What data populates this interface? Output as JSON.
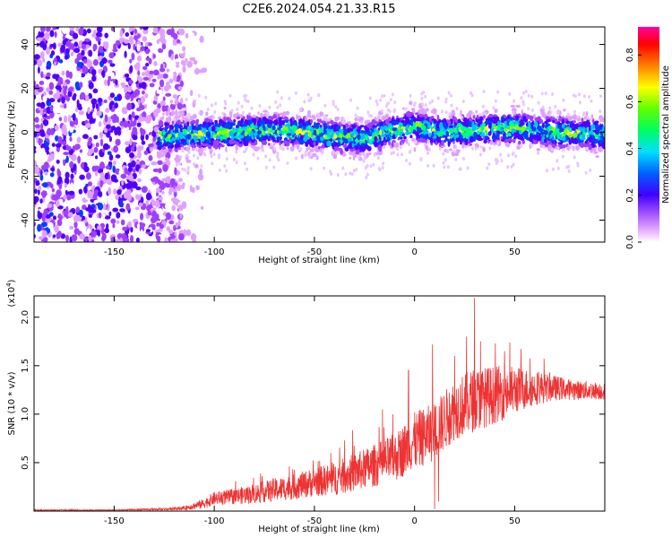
{
  "title": "C2E6.2024.054.21.33.R15",
  "chart_data": [
    {
      "type": "heatmap",
      "xlabel": "Height of straight line (km)",
      "ylabel": "Frequency (Hz)",
      "xlim": [
        -190,
        95
      ],
      "ylim": [
        -50,
        48
      ],
      "xticks": [
        -150,
        -100,
        -50,
        0,
        50
      ],
      "xtick_labels": [
        "-150",
        "-100",
        "-50",
        "0",
        "50"
      ],
      "yticks": [
        -40,
        -20,
        0,
        20,
        40
      ],
      "ytick_labels": [
        "-40",
        "-20",
        "0",
        "20",
        "40"
      ],
      "colorbar": {
        "label": "Normalized spectral amplitude",
        "range": [
          0,
          0.92
        ],
        "ticks": [
          0.0,
          0.2,
          0.4,
          0.6,
          0.8
        ],
        "tick_labels": [
          "0.0",
          "0.2",
          "0.4",
          "0.6",
          "0.8"
        ],
        "colormap": "rainbow"
      },
      "band": {
        "noise_region_x": [
          -190,
          -115
        ],
        "signal_start_x": -128,
        "center_freq_hz": [
          [
            -128,
            -2
          ],
          [
            -110,
            -1
          ],
          [
            -90,
            0
          ],
          [
            -70,
            1
          ],
          [
            -55,
            0
          ],
          [
            -40,
            -2
          ],
          [
            -25,
            -3
          ],
          [
            -10,
            1
          ],
          [
            0,
            3
          ],
          [
            15,
            0
          ],
          [
            30,
            1
          ],
          [
            50,
            2
          ],
          [
            70,
            0
          ],
          [
            95,
            -1
          ]
        ],
        "half_width_hz": 6
      }
    },
    {
      "type": "line",
      "xlabel": "Height of straight line (km)",
      "ylabel": "SNR (10 * v/v)",
      "y_multiplier_label": "(x10",
      "y_multiplier_exp": "4",
      "xlim": [
        -190,
        95
      ],
      "ylim": [
        0,
        2.22
      ],
      "xticks": [
        -150,
        -100,
        -50,
        0,
        50
      ],
      "xtick_labels": [
        "-150",
        "-100",
        "-50",
        "0",
        "50"
      ],
      "yticks": [
        0.5,
        1.0,
        1.5,
        2.0
      ],
      "ytick_labels": [
        "0.5",
        "1.0",
        "1.5",
        "2.0"
      ],
      "series": [
        {
          "name": "SNR",
          "color": "#ee3333",
          "envelope": {
            "x": [
              -190,
              -150,
              -125,
              -115,
              -105,
              -100,
              -90,
              -80,
              -70,
              -60,
              -50,
              -40,
              -30,
              -20,
              -10,
              0,
              10,
              20,
              30,
              40,
              50,
              60,
              70,
              80,
              95
            ],
            "mean": [
              0.01,
              0.01,
              0.02,
              0.03,
              0.08,
              0.13,
              0.15,
              0.18,
              0.22,
              0.25,
              0.3,
              0.33,
              0.4,
              0.47,
              0.55,
              0.72,
              0.82,
              1.05,
              1.15,
              1.2,
              1.25,
              1.27,
              1.27,
              1.25,
              1.24
            ],
            "spread": [
              0.005,
              0.005,
              0.01,
              0.02,
              0.05,
              0.07,
              0.08,
              0.1,
              0.12,
              0.13,
              0.15,
              0.17,
              0.2,
              0.22,
              0.25,
              0.3,
              0.3,
              0.32,
              0.33,
              0.3,
              0.25,
              0.18,
              0.13,
              0.1,
              0.09
            ]
          },
          "spikes": [
            [
              -3,
              1.45
            ],
            [
              9,
              1.72
            ],
            [
              10,
              0.02
            ],
            [
              12,
              0.1
            ],
            [
              20,
              1.6
            ],
            [
              26,
              1.8
            ],
            [
              30,
              2.2
            ],
            [
              33,
              1.75
            ],
            [
              45,
              1.65
            ]
          ]
        }
      ]
    }
  ]
}
